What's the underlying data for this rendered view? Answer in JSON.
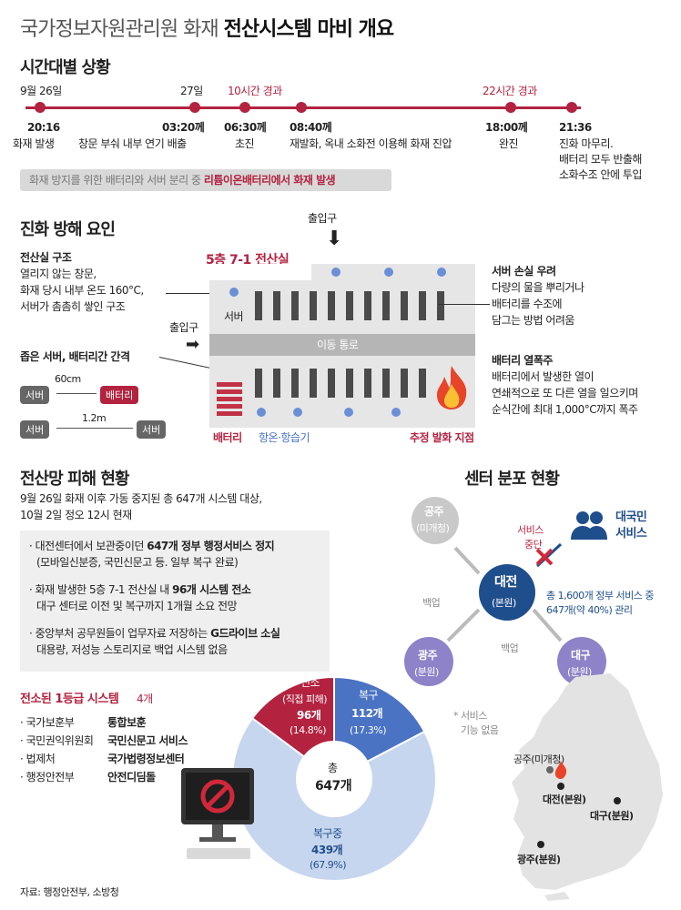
{
  "title": {
    "light": "국가정보자원관리원 화재",
    "bold": "전산시스템 마비 개요"
  },
  "timeline": {
    "heading": "시간대별 상황",
    "date1": "9월 26일",
    "date2": "27일",
    "elapsed1": "10시간 경과",
    "elapsed2": "22시간 경과",
    "events": [
      {
        "time": "20:16",
        "desc": "화재 발생"
      },
      {
        "time": "03:20께",
        "desc": "창문 부숴 내부 연기 배출"
      },
      {
        "time": "06:30께",
        "desc": "초진"
      },
      {
        "time": "08:40께",
        "desc": "재발화, 옥내 소화전 이용해 화재 진압"
      },
      {
        "time": "18:00께",
        "desc": "완진"
      },
      {
        "time": "21:36",
        "desc": "진화 마무리.",
        "desc2": "배터리 모두 반출해",
        "desc3": "소화수조 안에 투입"
      }
    ],
    "note_light": "화재 방지를 위한 배터리와 서버 분리 중 ",
    "note_bold": "리튬이온배터리에서 화재 발생"
  },
  "obstacles": {
    "heading": "진화 방해 요인",
    "room_label": "5층 7-1 전산실",
    "entrance_top": "출입구",
    "entrance_left": "출입구",
    "server_label": "서버",
    "corridor": "이동 통로",
    "battery_label": "배터리",
    "cooler_label": "항온·항습기",
    "fire_point": "추정 발화 지점",
    "structure_title": "전산실 구조",
    "structure_lines": [
      "열리지 않는 창문,",
      "화재 당시 내부 온도 160°C,",
      "서버가 촘촘히 쌓인 구조"
    ],
    "gap_title": "좁은 서버, 배터리간 간격",
    "gap1": "60cm",
    "gap2": "1.2m",
    "tag_server": "서버",
    "tag_battery": "배터리",
    "damage_title": "서버 손실 우려",
    "damage_lines": [
      "다량의 물을 뿌리거나",
      "배터리를 수조에",
      "담그는 방법 어려움"
    ],
    "runaway_title": "배터리 열폭주",
    "runaway_lines": [
      "배터리에서 발생한 열이",
      "연쇄적으로 또 다른 열을 일으키며",
      "순식간에 최대 1,000°C까지 폭주"
    ]
  },
  "network": {
    "heading": "전산망 피해 현황",
    "sub1": "9월 26일 화재 이후 가동 중지된 총 647개 시스템 대상,",
    "sub2": "10월 2일 정오 12시 현재",
    "bullets": [
      {
        "a": "대전센터에서 보관중이던 ",
        "b": "647개 정부 행정서비스 정지",
        "c": "(모바일신분증, 국민신문고 등. 일부 복구 완료)"
      },
      {
        "a": "화재 발생한 5층 7-1 전산실 내 ",
        "b": "96개 시스템 전소",
        "c": "대구 센터로 이전 및 복구까지 1개월 소요 전망"
      },
      {
        "a": "중앙부처 공무원들이 업무자료 저장하는 ",
        "b": "G드라이브 소실",
        "c": "대용량, 저성능 스토리지로 백업 시스템 없음"
      }
    ],
    "grade1_title": "전소된 1등급 시스템",
    "grade1_count": "4개",
    "grade1": [
      {
        "org": "국가보훈부",
        "sys": "통합보훈"
      },
      {
        "org": "국민권익위원회",
        "sys": "국민신문고 서비스"
      },
      {
        "org": "법제처",
        "sys": "국가법령정보센터"
      },
      {
        "org": "행정안전부",
        "sys": "안전디딤돌"
      }
    ],
    "source": "자료: 행정안전부, 소방청"
  },
  "chart_data": {
    "type": "pie",
    "title": "총 647개",
    "total_label": "총",
    "total_value": "647개",
    "slices": [
      {
        "name": "전소",
        "sub": "(직접 피해)",
        "value": 96,
        "value_label": "96개",
        "pct": "(14.8%)",
        "color": "#b3223f"
      },
      {
        "name": "복구",
        "value": 112,
        "value_label": "112개",
        "pct": "(17.3%)",
        "color": "#4a73c4"
      },
      {
        "name": "복구중",
        "value": 439,
        "value_label": "439개",
        "pct": "(67.9%)",
        "color": "#c7d6ef"
      }
    ]
  },
  "centers": {
    "heading": "센터 분포 현황",
    "gongju_top": "공주",
    "gongju_top_sub": "(미개청)",
    "daejeon": "대전",
    "daejeon_sub": "(본원)",
    "gwangju": "광주",
    "gwangju_sub": "(분원)",
    "daegu": "대구",
    "daegu_sub": "(분원)",
    "backup1": "백업",
    "backup2": "백업",
    "service_stop": "서비스",
    "service_stop2": "중단",
    "citizen": "대국민",
    "citizen2": "서비스",
    "daejeon_note1": "총 1,600개 정부 서비스 중",
    "daejeon_note2": "647개(약 40%) 관리",
    "no_service": "* 서비스",
    "no_service2": "기능 없음",
    "map_gongju": "공주(미개청)",
    "map_daejeon": "대전(본원)",
    "map_daegu": "대구(분원)",
    "map_gwangju": "광주(분원)"
  }
}
